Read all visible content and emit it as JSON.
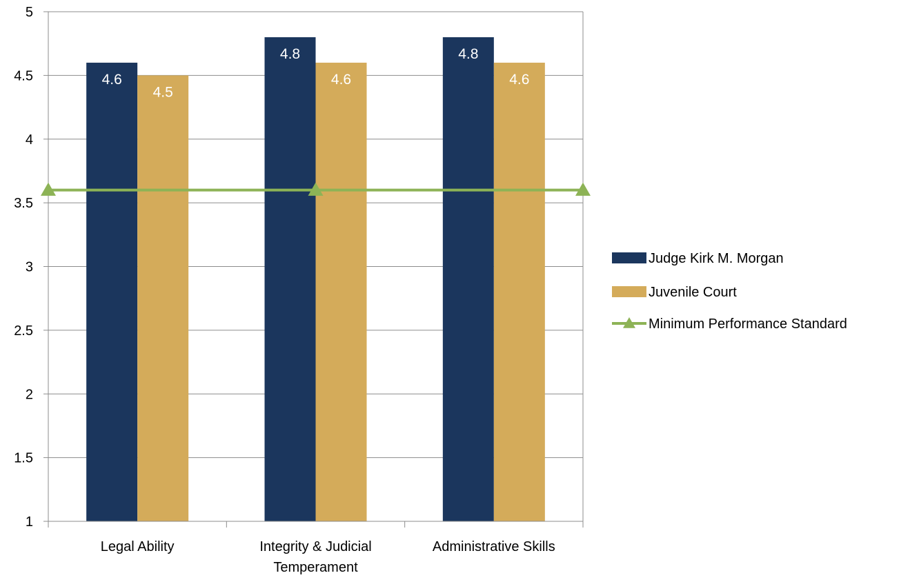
{
  "chart_data": {
    "type": "bar",
    "title": "",
    "xlabel": "",
    "ylabel": "",
    "ylim": [
      1,
      5
    ],
    "yticks": [
      "1",
      "1.5",
      "2",
      "2.5",
      "3",
      "3.5",
      "4",
      "4.5",
      "5"
    ],
    "ytick_values": [
      1,
      1.5,
      2,
      2.5,
      3,
      3.5,
      4,
      4.5,
      5
    ],
    "categories": [
      [
        "Legal Ability"
      ],
      [
        "Integrity & Judicial",
        "Temperament"
      ],
      [
        "Administrative Skills"
      ]
    ],
    "series": [
      {
        "name": "Judge Kirk M. Morgan",
        "kind": "bar",
        "color": "#1b365d",
        "values": [
          4.6,
          4.8,
          4.8
        ],
        "labels": [
          "4.6",
          "4.8",
          "4.8"
        ]
      },
      {
        "name": "Juvenile Court",
        "kind": "bar",
        "color": "#d4ab5a",
        "values": [
          4.5,
          4.6,
          4.6
        ],
        "labels": [
          "4.5",
          "4.6",
          "4.6"
        ]
      },
      {
        "name": "Minimum Performance Standard",
        "kind": "line",
        "marker": "triangle",
        "color": "#8db356",
        "values": [
          3.6,
          3.6,
          3.6
        ]
      }
    ],
    "grid": true,
    "legend_position": "right"
  }
}
